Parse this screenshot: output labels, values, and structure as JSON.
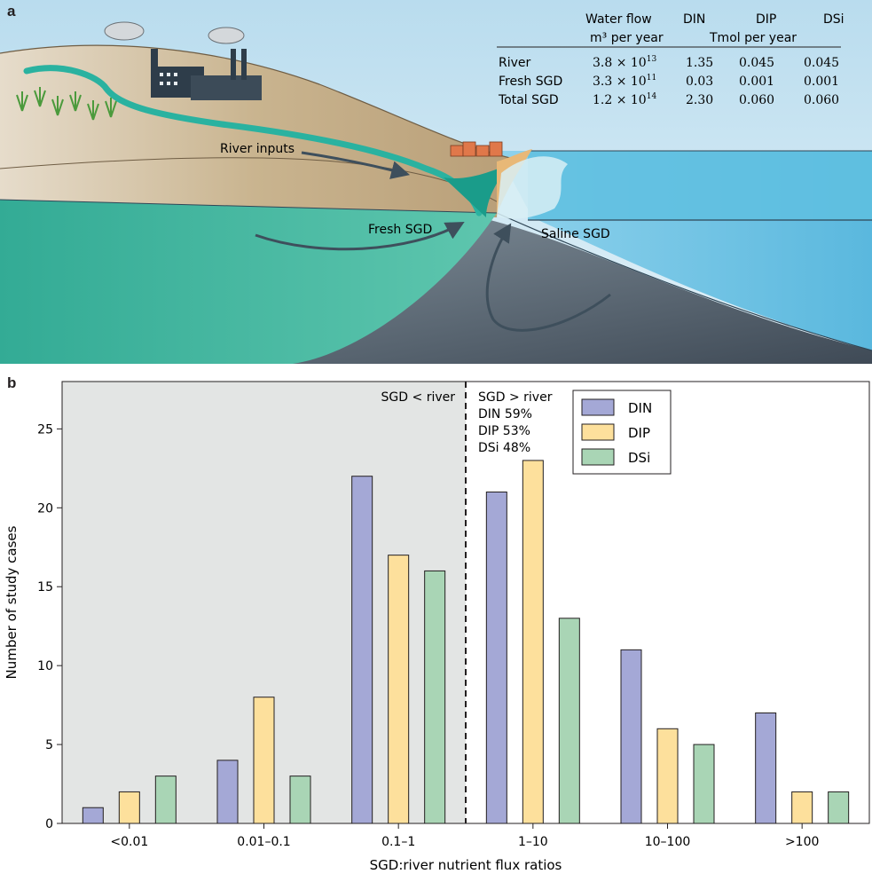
{
  "panel_a": {
    "letter": "a",
    "table": {
      "header_top": [
        "Water flow",
        "DIN",
        "DIP",
        "DSi"
      ],
      "unit_flow": "m³ per year",
      "unit_nutrients": "Tmol per year",
      "rows": [
        {
          "label": "River",
          "flow_base": "3.8 × 10",
          "flow_exp": "13",
          "din": "1.35",
          "dip": "0.045",
          "dsi": "0.045"
        },
        {
          "label": "Fresh SGD",
          "flow_base": "3.3 × 10",
          "flow_exp": "11",
          "din": "0.03",
          "dip": "0.001",
          "dsi": "0.001"
        },
        {
          "label": "Total SGD",
          "flow_base": "1.2 × 10",
          "flow_exp": "14",
          "din": "2.30",
          "dip": "0.060",
          "dsi": "0.060"
        }
      ]
    },
    "labels": {
      "river_inputs": "River inputs",
      "fresh_sgd": "Fresh SGD",
      "saline_sgd": "Saline SGD"
    },
    "colors": {
      "sky": "#cde6f2",
      "land": "#c8b491",
      "groundwater": "#3fb39c",
      "seawater": "#5fbfe0",
      "seabed": "#5a6a78",
      "river": "#2ab2a0"
    }
  },
  "panel_b": {
    "letter": "b"
  },
  "chart_data": {
    "type": "bar",
    "categories": [
      "<0.01",
      "0.01–0.1",
      "0.1–1",
      "1–10",
      "10–100",
      ">100"
    ],
    "series": [
      {
        "name": "DIN",
        "values": [
          1,
          4,
          22,
          21,
          11,
          7
        ],
        "color": "#a4a8d6"
      },
      {
        "name": "DIP",
        "values": [
          2,
          8,
          17,
          23,
          6,
          2
        ],
        "color": "#fde09c"
      },
      {
        "name": "DSi",
        "values": [
          3,
          3,
          16,
          13,
          5,
          2
        ],
        "color": "#a9d5b5"
      }
    ],
    "xlabel": "SGD:river nutrient flux ratios",
    "ylabel": "Number of study cases",
    "ylim": [
      0,
      28
    ],
    "yticks": [
      0,
      5,
      10,
      15,
      20,
      25
    ],
    "legend_position": "top-right",
    "grid": false,
    "shaded_region": {
      "from_category": 0,
      "to_category": 2,
      "color": "#e3e5e4"
    },
    "annotations": {
      "left": "SGD < river",
      "right_title": "SGD > river",
      "right_lines": [
        "DIN 59%",
        "DIP 53%",
        "DSi 48%"
      ]
    }
  }
}
